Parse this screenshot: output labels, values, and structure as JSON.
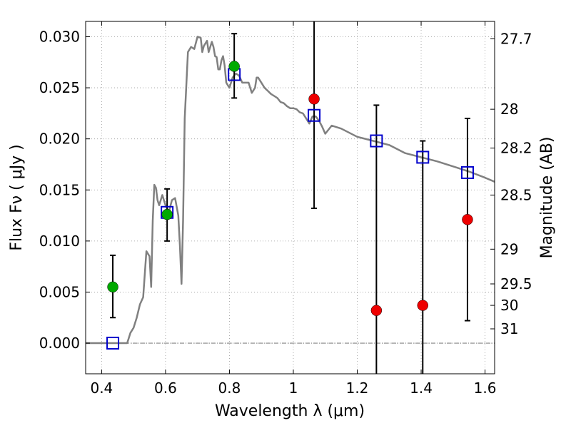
{
  "chart_data": {
    "type": "scatter",
    "xlabel": "Wavelength  λ (μm)",
    "ylabel": "Flux  Fν  ( μJy )",
    "y2label": "Magnitude (AB)",
    "xlim": [
      0.35,
      1.63
    ],
    "ylim": [
      -0.003,
      0.0315
    ],
    "grid": true,
    "x_ticks": [
      {
        "value": 0.4,
        "label": "0.4"
      },
      {
        "value": 0.6,
        "label": "0.6"
      },
      {
        "value": 0.8,
        "label": "0.8"
      },
      {
        "value": 1.0,
        "label": "1"
      },
      {
        "value": 1.2,
        "label": "1.2"
      },
      {
        "value": 1.4,
        "label": "1.4"
      },
      {
        "value": 1.6,
        "label": "1.6"
      }
    ],
    "y_ticks": [
      {
        "value": 0.0,
        "label": "0.000"
      },
      {
        "value": 0.005,
        "label": "0.005"
      },
      {
        "value": 0.01,
        "label": "0.010"
      },
      {
        "value": 0.015,
        "label": "0.015"
      },
      {
        "value": 0.02,
        "label": "0.020"
      },
      {
        "value": 0.025,
        "label": "0.025"
      },
      {
        "value": 0.03,
        "label": "0.030"
      }
    ],
    "right_ticks": [
      {
        "flux": 0.0298,
        "label": "27.7"
      },
      {
        "flux": 0.0229,
        "label": "28"
      },
      {
        "flux": 0.0191,
        "label": "28.2"
      },
      {
        "flux": 0.0145,
        "label": "28.5"
      },
      {
        "flux": 0.0092,
        "label": "29"
      },
      {
        "flux": 0.0058,
        "label": "29.5"
      },
      {
        "flux": 0.0037,
        "label": "30"
      },
      {
        "flux": 0.0014,
        "label": "31"
      }
    ],
    "series": [
      {
        "kind": "line",
        "color": "#808080",
        "points": [
          [
            0.35,
            0.0
          ],
          [
            0.48,
            0.0
          ],
          [
            0.49,
            0.001
          ],
          [
            0.5,
            0.0015
          ],
          [
            0.51,
            0.0025
          ],
          [
            0.52,
            0.0038
          ],
          [
            0.53,
            0.0045
          ],
          [
            0.54,
            0.009
          ],
          [
            0.55,
            0.0085
          ],
          [
            0.555,
            0.0055
          ],
          [
            0.56,
            0.012
          ],
          [
            0.565,
            0.0155
          ],
          [
            0.57,
            0.0152
          ],
          [
            0.575,
            0.014
          ],
          [
            0.58,
            0.0135
          ],
          [
            0.59,
            0.0145
          ],
          [
            0.6,
            0.0135
          ],
          [
            0.61,
            0.0128
          ],
          [
            0.62,
            0.014
          ],
          [
            0.63,
            0.0142
          ],
          [
            0.64,
            0.0125
          ],
          [
            0.645,
            0.0095
          ],
          [
            0.65,
            0.0058
          ],
          [
            0.655,
            0.012
          ],
          [
            0.66,
            0.022
          ],
          [
            0.67,
            0.0285
          ],
          [
            0.68,
            0.029
          ],
          [
            0.69,
            0.0288
          ],
          [
            0.7,
            0.03
          ],
          [
            0.71,
            0.0299
          ],
          [
            0.715,
            0.0285
          ],
          [
            0.72,
            0.0291
          ],
          [
            0.73,
            0.0296
          ],
          [
            0.735,
            0.0285
          ],
          [
            0.74,
            0.029
          ],
          [
            0.745,
            0.0295
          ],
          [
            0.75,
            0.029
          ],
          [
            0.755,
            0.0281
          ],
          [
            0.76,
            0.028
          ],
          [
            0.765,
            0.0268
          ],
          [
            0.77,
            0.0268
          ],
          [
            0.775,
            0.0277
          ],
          [
            0.78,
            0.0281
          ],
          [
            0.785,
            0.0272
          ],
          [
            0.79,
            0.0255
          ],
          [
            0.8,
            0.025
          ],
          [
            0.81,
            0.026
          ],
          [
            0.82,
            0.0264
          ],
          [
            0.83,
            0.0262
          ],
          [
            0.84,
            0.0255
          ],
          [
            0.85,
            0.0255
          ],
          [
            0.86,
            0.0255
          ],
          [
            0.87,
            0.0245
          ],
          [
            0.88,
            0.025
          ],
          [
            0.885,
            0.026
          ],
          [
            0.89,
            0.026
          ],
          [
            0.9,
            0.0255
          ],
          [
            0.91,
            0.025
          ],
          [
            0.92,
            0.0247
          ],
          [
            0.93,
            0.0244
          ],
          [
            0.94,
            0.0242
          ],
          [
            0.95,
            0.024
          ],
          [
            0.96,
            0.0236
          ],
          [
            0.97,
            0.0235
          ],
          [
            0.98,
            0.0232
          ],
          [
            0.99,
            0.023
          ],
          [
            1.0,
            0.023
          ],
          [
            1.01,
            0.0229
          ],
          [
            1.02,
            0.0226
          ],
          [
            1.03,
            0.0225
          ],
          [
            1.04,
            0.022
          ],
          [
            1.05,
            0.0215
          ],
          [
            1.06,
            0.0222
          ],
          [
            1.07,
            0.0222
          ],
          [
            1.08,
            0.0218
          ],
          [
            1.09,
            0.0212
          ],
          [
            1.1,
            0.0205
          ],
          [
            1.12,
            0.0213
          ],
          [
            1.15,
            0.021
          ],
          [
            1.2,
            0.0202
          ],
          [
            1.25,
            0.0198
          ],
          [
            1.3,
            0.0194
          ],
          [
            1.35,
            0.0186
          ],
          [
            1.4,
            0.0182
          ],
          [
            1.45,
            0.0178
          ],
          [
            1.5,
            0.0173
          ],
          [
            1.55,
            0.0168
          ],
          [
            1.6,
            0.0162
          ],
          [
            1.63,
            0.0158
          ]
        ]
      },
      {
        "kind": "open_square",
        "color": "#0000cc",
        "points": [
          [
            0.435,
            0.0
          ],
          [
            0.605,
            0.0128
          ],
          [
            0.815,
            0.0263
          ],
          [
            1.065,
            0.0223
          ],
          [
            1.26,
            0.0198
          ],
          [
            1.405,
            0.0182
          ],
          [
            1.545,
            0.0167
          ]
        ]
      },
      {
        "kind": "marker",
        "color": "#00aa00",
        "points": [
          [
            0.435,
            0.0055
          ],
          [
            0.605,
            0.0126
          ],
          [
            0.815,
            0.0271
          ]
        ]
      },
      {
        "kind": "marker",
        "color": "#ee0000",
        "points": [
          [
            1.065,
            0.0239
          ],
          [
            1.26,
            0.0032
          ],
          [
            1.405,
            0.0037
          ],
          [
            1.545,
            0.0121
          ]
        ]
      }
    ],
    "error_bars": [
      {
        "x": 0.435,
        "low": 0.0025,
        "high": 0.0086
      },
      {
        "x": 0.605,
        "low": 0.01,
        "high": 0.0151
      },
      {
        "x": 0.815,
        "low": 0.024,
        "high": 0.0303
      },
      {
        "x": 1.065,
        "low": 0.0132,
        "high": 0.0315
      },
      {
        "x": 1.26,
        "low": -0.003,
        "high": 0.0233
      },
      {
        "x": 1.405,
        "low": -0.003,
        "high": 0.0198
      },
      {
        "x": 1.545,
        "low": 0.0022,
        "high": 0.022
      }
    ]
  }
}
